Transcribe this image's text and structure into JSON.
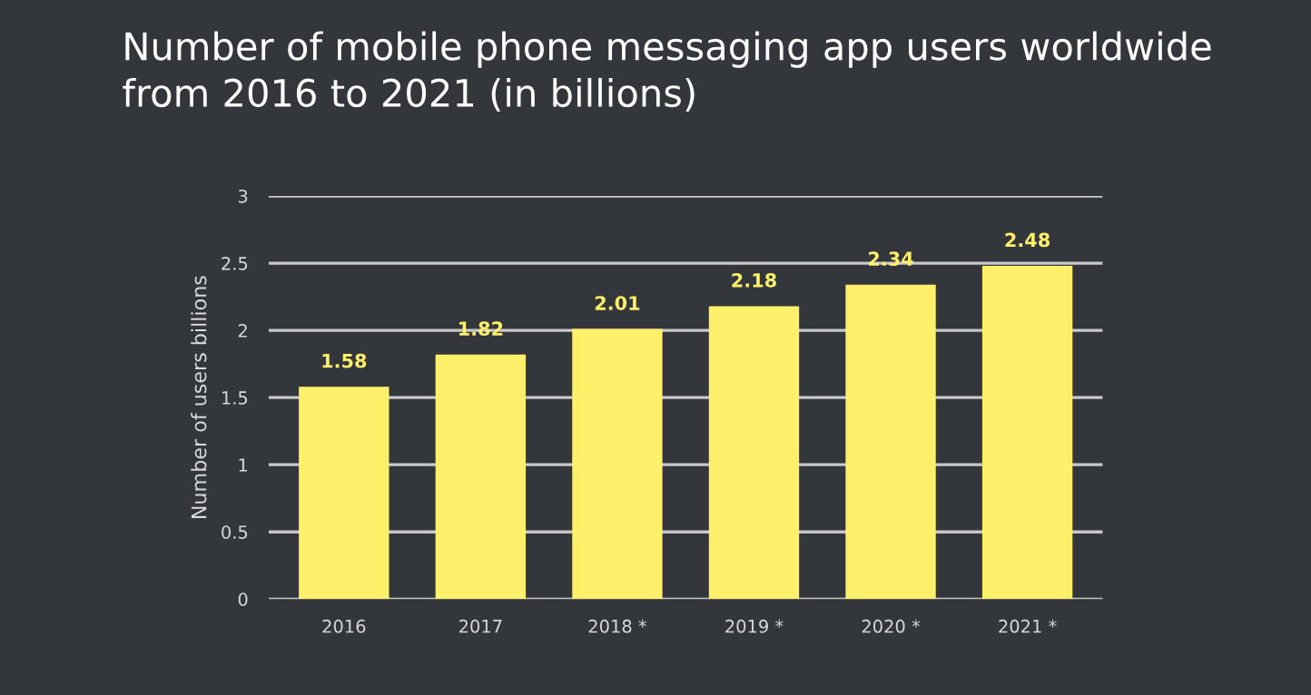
{
  "chart_data": {
    "type": "bar",
    "title": "Number of mobile phone messaging app users worldwide\nfrom 2016 to 2021 (in billions)",
    "ylabel": "Number of users billions",
    "categories": [
      "2016",
      "2017",
      "2018 *",
      "2019 *",
      "2020 *",
      "2021 *"
    ],
    "values": [
      1.58,
      1.82,
      2.01,
      2.18,
      2.34,
      2.48
    ],
    "color": "#fff06b",
    "ylim": [
      0,
      3
    ],
    "yticks": [
      0,
      0.5,
      1,
      1.5,
      2,
      2.5,
      3
    ],
    "grid": "y",
    "data_labels": true
  }
}
